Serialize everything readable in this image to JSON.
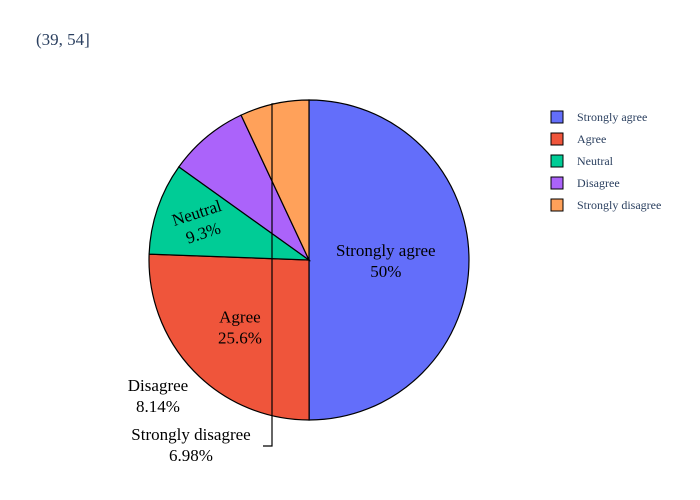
{
  "chart_data": {
    "type": "pie",
    "title": "(39, 54]",
    "labels": [
      "Strongly agree",
      "Agree",
      "Neutral",
      "Disagree",
      "Strongly disagree"
    ],
    "values": [
      50,
      25.6,
      9.3,
      8.14,
      6.98
    ],
    "value_labels": [
      "50%",
      "25.6%",
      "9.3%",
      "8.14%",
      "6.98%"
    ],
    "colors": [
      "#636efa",
      "#ef553b",
      "#00cc96",
      "#ab63fa",
      "#ffa15a"
    ],
    "legend": {
      "position": "right",
      "items": [
        "Strongly agree",
        "Agree",
        "Neutral",
        "Disagree",
        "Strongly disagree"
      ]
    },
    "direction": "clockwise",
    "start_angle": "12 o'clock"
  }
}
